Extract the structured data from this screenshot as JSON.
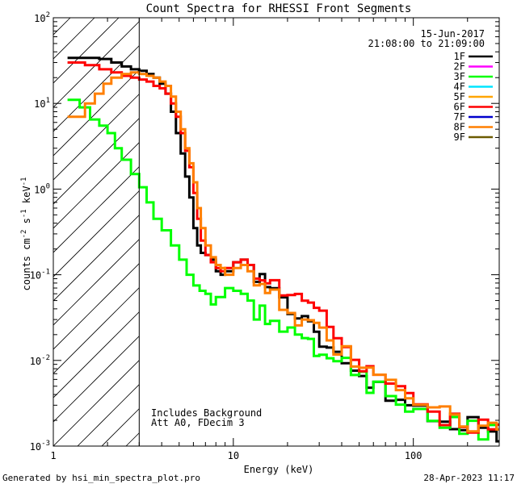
{
  "chart_data": {
    "type": "line",
    "title": "Count Spectra for RHESSI Front Segments",
    "xlabel": "Energy (keV)",
    "ylabel_parts": [
      "counts cm",
      "-2",
      " s",
      "-1",
      " keV",
      "-1"
    ],
    "xscale": "log",
    "yscale": "log",
    "xlim": [
      1,
      300
    ],
    "ylim": [
      0.001,
      100
    ],
    "x_tick_labels": [
      {
        "value": 1,
        "label": "1"
      },
      {
        "value": 10,
        "label": "10"
      },
      {
        "value": 100,
        "label": "100"
      }
    ],
    "y_tick_labels": [
      {
        "value": 0.001,
        "base": "10",
        "exp": "-3"
      },
      {
        "value": 0.01,
        "base": "10",
        "exp": "-2"
      },
      {
        "value": 0.1,
        "base": "10",
        "exp": "-1"
      },
      {
        "value": 1,
        "base": "10",
        "exp": "0"
      },
      {
        "value": 10,
        "base": "10",
        "exp": "1"
      },
      {
        "value": 100,
        "base": "10",
        "exp": "2"
      }
    ],
    "attenuator_cutoff_kev": 3,
    "header_lines": [
      "15-Jun-2017",
      "21:08:00 to 21:09:00"
    ],
    "annotations": [
      "Includes Background",
      "Att A0, FDecim 3"
    ],
    "legend": [
      {
        "name": "1F",
        "color": "#000000"
      },
      {
        "name": "2F",
        "color": "#ff00ff"
      },
      {
        "name": "3F",
        "color": "#00ff00"
      },
      {
        "name": "4F",
        "color": "#00e5ff"
      },
      {
        "name": "5F",
        "color": "#ffa500"
      },
      {
        "name": "6F",
        "color": "#ff0000"
      },
      {
        "name": "7F",
        "color": "#0000cc"
      },
      {
        "name": "8F",
        "color": "#ff7f00"
      },
      {
        "name": "9F",
        "color": "#6b5a00"
      }
    ],
    "series": [
      {
        "name": "1F",
        "color": "#000000",
        "points": [
          [
            1.2,
            34
          ],
          [
            1.5,
            34
          ],
          [
            1.8,
            33
          ],
          [
            2.1,
            30
          ],
          [
            2.4,
            27
          ],
          [
            2.7,
            25
          ],
          [
            3.0,
            24
          ],
          [
            3.3,
            22
          ],
          [
            3.6,
            20
          ],
          [
            3.9,
            17
          ],
          [
            4.2,
            13
          ],
          [
            4.5,
            8
          ],
          [
            4.8,
            4.5
          ],
          [
            5.1,
            2.6
          ],
          [
            5.4,
            1.4
          ],
          [
            5.7,
            0.8
          ],
          [
            6.0,
            0.35
          ],
          [
            6.3,
            0.22
          ],
          [
            6.6,
            0.18
          ],
          [
            7.0,
            0.17
          ],
          [
            7.5,
            0.15
          ],
          [
            8,
            0.11
          ],
          [
            8.5,
            0.1
          ],
          [
            9,
            0.11
          ],
          [
            10,
            0.14
          ],
          [
            11,
            0.15
          ],
          [
            12,
            0.13
          ],
          [
            13,
            0.11
          ],
          [
            14,
            0.09
          ],
          [
            15,
            0.08
          ],
          [
            16,
            0.07
          ],
          [
            18,
            0.05
          ],
          [
            20,
            0.04
          ],
          [
            22,
            0.03
          ],
          [
            24,
            0.028
          ],
          [
            26,
            0.024
          ],
          [
            28,
            0.02
          ],
          [
            30,
            0.017
          ],
          [
            33,
            0.015
          ],
          [
            36,
            0.012
          ],
          [
            40,
            0.01
          ],
          [
            45,
            0.009
          ],
          [
            50,
            0.007
          ],
          [
            55,
            0.006
          ],
          [
            60,
            0.005
          ],
          [
            70,
            0.004
          ],
          [
            80,
            0.0035
          ],
          [
            90,
            0.003
          ],
          [
            100,
            0.0028
          ],
          [
            120,
            0.0024
          ],
          [
            140,
            0.0022
          ],
          [
            160,
            0.002
          ],
          [
            180,
            0.0019
          ],
          [
            200,
            0.0018
          ],
          [
            230,
            0.0017
          ],
          [
            260,
            0.0016
          ],
          [
            290,
            0.0015
          ]
        ]
      },
      {
        "name": "3F",
        "color": "#00ff00",
        "points": [
          [
            1.2,
            11
          ],
          [
            1.4,
            9
          ],
          [
            1.6,
            6.5
          ],
          [
            1.8,
            5.5
          ],
          [
            2.0,
            4.5
          ],
          [
            2.2,
            3.0
          ],
          [
            2.4,
            2.2
          ],
          [
            2.7,
            1.5
          ],
          [
            3.0,
            1.05
          ],
          [
            3.3,
            0.7
          ],
          [
            3.6,
            0.45
          ],
          [
            4.0,
            0.33
          ],
          [
            4.5,
            0.22
          ],
          [
            5,
            0.15
          ],
          [
            5.5,
            0.1
          ],
          [
            6,
            0.075
          ],
          [
            6.5,
            0.065
          ],
          [
            7,
            0.06
          ],
          [
            7.5,
            0.045
          ],
          [
            8,
            0.055
          ],
          [
            9,
            0.07
          ],
          [
            10,
            0.065
          ],
          [
            11,
            0.06
          ],
          [
            12,
            0.05
          ],
          [
            13,
            0.04
          ],
          [
            14,
            0.035
          ],
          [
            15,
            0.03
          ],
          [
            16,
            0.028
          ],
          [
            18,
            0.022
          ],
          [
            20,
            0.02
          ],
          [
            22,
            0.018
          ],
          [
            24,
            0.016
          ],
          [
            26,
            0.015
          ],
          [
            28,
            0.014
          ],
          [
            30,
            0.012
          ],
          [
            33,
            0.011
          ],
          [
            36,
            0.01
          ],
          [
            40,
            0.009
          ],
          [
            45,
            0.008
          ],
          [
            50,
            0.0065
          ],
          [
            55,
            0.0055
          ],
          [
            60,
            0.005
          ],
          [
            70,
            0.004
          ],
          [
            80,
            0.0035
          ],
          [
            90,
            0.003
          ],
          [
            100,
            0.0026
          ],
          [
            120,
            0.0022
          ],
          [
            140,
            0.002
          ],
          [
            160,
            0.0018
          ],
          [
            180,
            0.0017
          ],
          [
            200,
            0.0016
          ],
          [
            230,
            0.0015
          ],
          [
            260,
            0.0015
          ],
          [
            290,
            0.0015
          ]
        ]
      },
      {
        "name": "6F",
        "color": "#ff0000",
        "points": [
          [
            1.2,
            30
          ],
          [
            1.5,
            28
          ],
          [
            1.8,
            25
          ],
          [
            2.1,
            23
          ],
          [
            2.4,
            21
          ],
          [
            2.7,
            20
          ],
          [
            3.0,
            19
          ],
          [
            3.3,
            18
          ],
          [
            3.6,
            16
          ],
          [
            3.9,
            15
          ],
          [
            4.2,
            13
          ],
          [
            4.5,
            10
          ],
          [
            4.8,
            7
          ],
          [
            5.1,
            4.5
          ],
          [
            5.4,
            2.8
          ],
          [
            5.7,
            1.8
          ],
          [
            6.0,
            0.9
          ],
          [
            6.3,
            0.45
          ],
          [
            6.6,
            0.25
          ],
          [
            7.0,
            0.17
          ],
          [
            7.5,
            0.14
          ],
          [
            8,
            0.12
          ],
          [
            8.5,
            0.11
          ],
          [
            9,
            0.12
          ],
          [
            10,
            0.14
          ],
          [
            11,
            0.15
          ],
          [
            12,
            0.13
          ],
          [
            13,
            0.12
          ],
          [
            14,
            0.1
          ],
          [
            15,
            0.09
          ],
          [
            16,
            0.08
          ],
          [
            18,
            0.065
          ],
          [
            20,
            0.055
          ],
          [
            22,
            0.05
          ],
          [
            24,
            0.045
          ],
          [
            26,
            0.04
          ],
          [
            28,
            0.04
          ],
          [
            30,
            0.035
          ],
          [
            33,
            0.025
          ],
          [
            36,
            0.02
          ],
          [
            40,
            0.015
          ],
          [
            45,
            0.012
          ],
          [
            50,
            0.009
          ],
          [
            55,
            0.007
          ],
          [
            60,
            0.006
          ],
          [
            70,
            0.005
          ],
          [
            80,
            0.004
          ],
          [
            90,
            0.0035
          ],
          [
            100,
            0.003
          ],
          [
            120,
            0.0026
          ],
          [
            140,
            0.0023
          ],
          [
            160,
            0.0021
          ],
          [
            180,
            0.002
          ],
          [
            200,
            0.0019
          ],
          [
            230,
            0.0018
          ],
          [
            260,
            0.0017
          ],
          [
            290,
            0.0016
          ]
        ]
      },
      {
        "name": "8F",
        "color": "#ff7f00",
        "points": [
          [
            1.2,
            7
          ],
          [
            1.35,
            7
          ],
          [
            1.5,
            10
          ],
          [
            1.7,
            13
          ],
          [
            1.9,
            17
          ],
          [
            2.1,
            20
          ],
          [
            2.4,
            22
          ],
          [
            2.7,
            23
          ],
          [
            3.0,
            22
          ],
          [
            3.3,
            21
          ],
          [
            3.6,
            20
          ],
          [
            3.9,
            18
          ],
          [
            4.2,
            16
          ],
          [
            4.5,
            12
          ],
          [
            4.8,
            8
          ],
          [
            5.1,
            5
          ],
          [
            5.4,
            3
          ],
          [
            5.7,
            2
          ],
          [
            6.0,
            1.2
          ],
          [
            6.3,
            0.6
          ],
          [
            6.6,
            0.35
          ],
          [
            7.0,
            0.22
          ],
          [
            7.5,
            0.16
          ],
          [
            8,
            0.13
          ],
          [
            8.5,
            0.12
          ],
          [
            9,
            0.1
          ],
          [
            10,
            0.12
          ],
          [
            11,
            0.13
          ],
          [
            12,
            0.11
          ],
          [
            13,
            0.1
          ],
          [
            14,
            0.08
          ],
          [
            15,
            0.07
          ],
          [
            16,
            0.06
          ],
          [
            18,
            0.05
          ],
          [
            20,
            0.04
          ],
          [
            22,
            0.033
          ],
          [
            24,
            0.028
          ],
          [
            26,
            0.025
          ],
          [
            28,
            0.022
          ],
          [
            30,
            0.02
          ],
          [
            33,
            0.017
          ],
          [
            36,
            0.014
          ],
          [
            40,
            0.012
          ],
          [
            45,
            0.01
          ],
          [
            50,
            0.008
          ],
          [
            55,
            0.007
          ],
          [
            60,
            0.006
          ],
          [
            70,
            0.005
          ],
          [
            80,
            0.004
          ],
          [
            90,
            0.0035
          ],
          [
            100,
            0.003
          ],
          [
            120,
            0.0027
          ],
          [
            140,
            0.0024
          ],
          [
            160,
            0.0022
          ],
          [
            180,
            0.002
          ],
          [
            200,
            0.0019
          ],
          [
            230,
            0.0018
          ],
          [
            260,
            0.0016
          ],
          [
            290,
            0.0015
          ]
        ]
      }
    ]
  },
  "footer": {
    "left": "Generated by hsi_min_spectra_plot.pro",
    "right": "28-Apr-2023 11:17"
  }
}
